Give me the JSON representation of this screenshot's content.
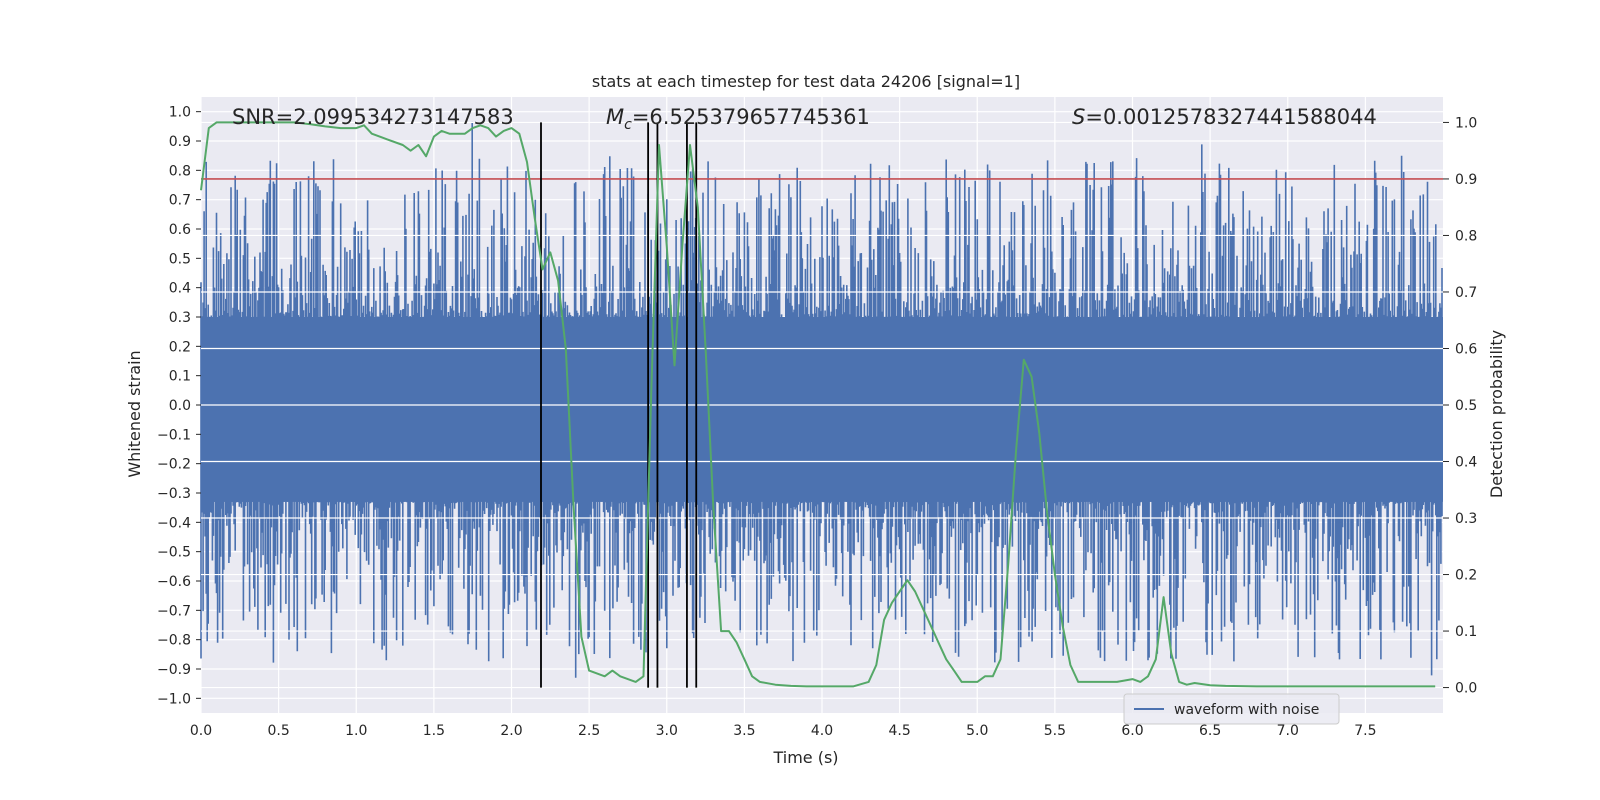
{
  "chart_data": {
    "type": "line",
    "title": "stats at each timestep for test data 24206 [signal=1]",
    "xlabel": "Time (s)",
    "ylabel": "Whitened strain",
    "y2label": "Detection probability",
    "xlim": [
      0.0,
      8.0
    ],
    "ylim": [
      -1.05,
      1.05
    ],
    "y2lim": [
      -0.045,
      1.045
    ],
    "xticks": [
      "0.0",
      "0.5",
      "1.0",
      "1.5",
      "2.0",
      "2.5",
      "3.0",
      "3.5",
      "4.0",
      "4.5",
      "5.0",
      "5.5",
      "6.0",
      "6.5",
      "7.0",
      "7.5"
    ],
    "yticks": [
      "1.0",
      "0.9",
      "0.8",
      "0.7",
      "0.6",
      "0.5",
      "0.4",
      "0.3",
      "0.2",
      "0.1",
      "0.0",
      "−0.1",
      "−0.2",
      "−0.3",
      "−0.4",
      "−0.5",
      "−0.6",
      "−0.7",
      "−0.8",
      "−0.9",
      "−1.0"
    ],
    "y2ticks": [
      "1.0",
      "0.9",
      "0.8",
      "0.7",
      "0.6",
      "0.5",
      "0.4",
      "0.3",
      "0.2",
      "0.1",
      "0.0"
    ],
    "grid": true,
    "legend_placement": "lower-right",
    "annotations": {
      "snr_text": "SNR=2.099534273147583",
      "mc_symbol": "M",
      "mc_subscript": "c",
      "mc_value": "=6.525379657745361",
      "s_symbol": "S",
      "s_value": "=0.0012578327441588044"
    },
    "series": [
      {
        "name": "waveform with noise",
        "axis": "left",
        "color": "#4c72b0",
        "description_core_band": [
          -0.33,
          0.3
        ],
        "sample_points": 1200
      },
      {
        "axis": "right",
        "color": "#55a868",
        "x": [
          0.0,
          0.05,
          0.1,
          0.2,
          0.3,
          0.4,
          0.5,
          0.6,
          0.7,
          0.8,
          0.9,
          1.0,
          1.05,
          1.1,
          1.2,
          1.3,
          1.35,
          1.4,
          1.45,
          1.5,
          1.55,
          1.6,
          1.7,
          1.75,
          1.8,
          1.85,
          1.9,
          1.95,
          2.0,
          2.05,
          2.1,
          2.15,
          2.2,
          2.25,
          2.3,
          2.35,
          2.4,
          2.45,
          2.5,
          2.6,
          2.65,
          2.7,
          2.8,
          2.85,
          2.9,
          2.95,
          3.0,
          3.05,
          3.1,
          3.15,
          3.2,
          3.25,
          3.3,
          3.35,
          3.4,
          3.45,
          3.5,
          3.55,
          3.6,
          3.7,
          3.8,
          3.9,
          4.0,
          4.1,
          4.2,
          4.3,
          4.35,
          4.4,
          4.45,
          4.5,
          4.55,
          4.6,
          4.7,
          4.75,
          4.8,
          4.85,
          4.9,
          5.0,
          5.05,
          5.1,
          5.15,
          5.2,
          5.25,
          5.3,
          5.35,
          5.4,
          5.45,
          5.5,
          5.55,
          5.6,
          5.65,
          5.7,
          5.8,
          5.9,
          6.0,
          6.05,
          6.1,
          6.15,
          6.2,
          6.25,
          6.3,
          6.35,
          6.4,
          6.5,
          6.6,
          6.8,
          7.0,
          7.2,
          7.4,
          7.6,
          7.8,
          7.95
        ],
        "y": [
          0.88,
          0.99,
          1.0,
          1.0,
          1.0,
          1.0,
          1.0,
          1.0,
          0.997,
          0.993,
          0.99,
          0.99,
          0.995,
          0.98,
          0.97,
          0.96,
          0.95,
          0.96,
          0.94,
          0.975,
          0.985,
          0.98,
          0.98,
          0.99,
          0.995,
          0.99,
          0.975,
          0.985,
          0.99,
          0.98,
          0.93,
          0.83,
          0.74,
          0.77,
          0.72,
          0.6,
          0.32,
          0.09,
          0.03,
          0.02,
          0.03,
          0.02,
          0.01,
          0.02,
          0.52,
          0.96,
          0.78,
          0.57,
          0.78,
          0.96,
          0.85,
          0.6,
          0.32,
          0.1,
          0.1,
          0.08,
          0.05,
          0.02,
          0.01,
          0.005,
          0.003,
          0.002,
          0.002,
          0.002,
          0.002,
          0.01,
          0.04,
          0.12,
          0.15,
          0.17,
          0.19,
          0.17,
          0.11,
          0.08,
          0.05,
          0.03,
          0.01,
          0.01,
          0.02,
          0.02,
          0.05,
          0.22,
          0.42,
          0.58,
          0.55,
          0.45,
          0.31,
          0.2,
          0.11,
          0.04,
          0.01,
          0.01,
          0.01,
          0.01,
          0.015,
          0.01,
          0.02,
          0.05,
          0.16,
          0.06,
          0.01,
          0.005,
          0.008,
          0.004,
          0.003,
          0.002,
          0.002,
          0.002,
          0.002,
          0.002,
          0.002,
          0.002
        ]
      }
    ],
    "threshold_line": {
      "axis": "right",
      "value": 0.9,
      "color": "#c44e52"
    },
    "vertical_markers": {
      "x": [
        2.19,
        2.88,
        2.94,
        3.13,
        3.19
      ],
      "y2_range": [
        0.0,
        1.0
      ],
      "color": "#000000"
    }
  }
}
